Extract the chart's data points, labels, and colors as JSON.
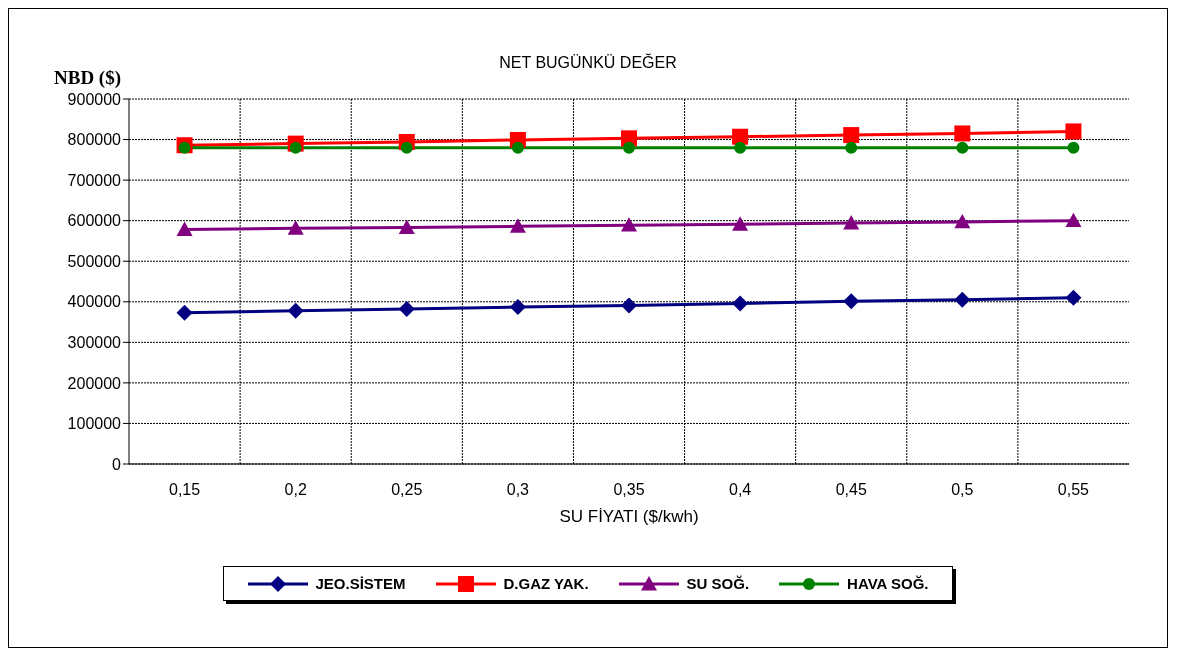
{
  "chart_data": {
    "type": "line",
    "title": "NET BUGÜNKÜ DEĞER",
    "xlabel": "SU FİYATI ($/kwh)",
    "ylabel": "NBD ($)",
    "categories": [
      "0,15",
      "0,2",
      "0,25",
      "0,3",
      "0,35",
      "0,4",
      "0,45",
      "0,5",
      "0,55"
    ],
    "series": [
      {
        "name": "JEO.SİSTEM",
        "color": "#000080",
        "marker": "diamond",
        "values": [
          373000,
          378000,
          382000,
          387000,
          391000,
          396000,
          401000,
          405000,
          410000
        ]
      },
      {
        "name": "D.GAZ YAK.",
        "color": "#ff0000",
        "marker": "square",
        "values": [
          786000,
          790000,
          794000,
          799000,
          803000,
          807000,
          811000,
          815000,
          820000
        ]
      },
      {
        "name": "SU SOĞ.",
        "color": "#800080",
        "marker": "triangle",
        "values": [
          578000,
          581000,
          583000,
          586000,
          589000,
          591000,
          594000,
          597000,
          600000
        ]
      },
      {
        "name": "HAVA SOĞ.",
        "color": "#008000",
        "marker": "circle",
        "values": [
          780000,
          780000,
          780000,
          780000,
          780000,
          780000,
          780000,
          780000,
          780000
        ]
      }
    ],
    "ylim": [
      0,
      900000
    ],
    "yticks": [
      0,
      100000,
      200000,
      300000,
      400000,
      500000,
      600000,
      700000,
      800000,
      900000
    ],
    "grid": true,
    "legend": "bottom"
  }
}
